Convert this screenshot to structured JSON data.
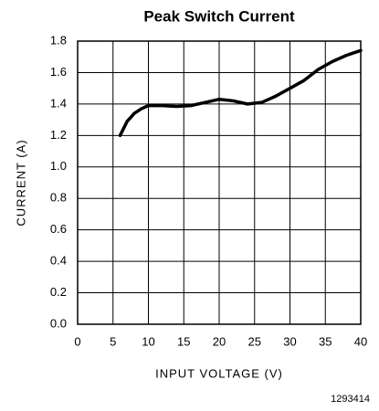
{
  "chart_data": {
    "type": "line",
    "title": "Peak Switch Current",
    "x_label": "INPUT VOLTAGE (V)",
    "y_label": "CURRENT (A)",
    "annotation": "1293414",
    "x": [
      6,
      7,
      8,
      9,
      10,
      12,
      14,
      16,
      18,
      20,
      22,
      24,
      26,
      28,
      30,
      32,
      34,
      36,
      38,
      40
    ],
    "series": [
      {
        "name": "Peak Switch Current",
        "color": "#000000",
        "values": [
          1.2,
          1.29,
          1.34,
          1.37,
          1.39,
          1.39,
          1.385,
          1.39,
          1.41,
          1.43,
          1.42,
          1.4,
          1.41,
          1.45,
          1.5,
          1.55,
          1.62,
          1.67,
          1.71,
          1.74
        ]
      }
    ],
    "xlim": [
      0,
      40
    ],
    "xticks": [
      0,
      5,
      10,
      15,
      20,
      25,
      30,
      35,
      40
    ],
    "ylim": [
      0,
      1.8
    ],
    "yticks": [
      {
        "value": 0,
        "label": "0.0"
      },
      0.2,
      0.4,
      0.6,
      0.8,
      {
        "value": 1,
        "label": "1.0"
      },
      1.2,
      1.4,
      1.6,
      1.8
    ],
    "grid": true
  }
}
